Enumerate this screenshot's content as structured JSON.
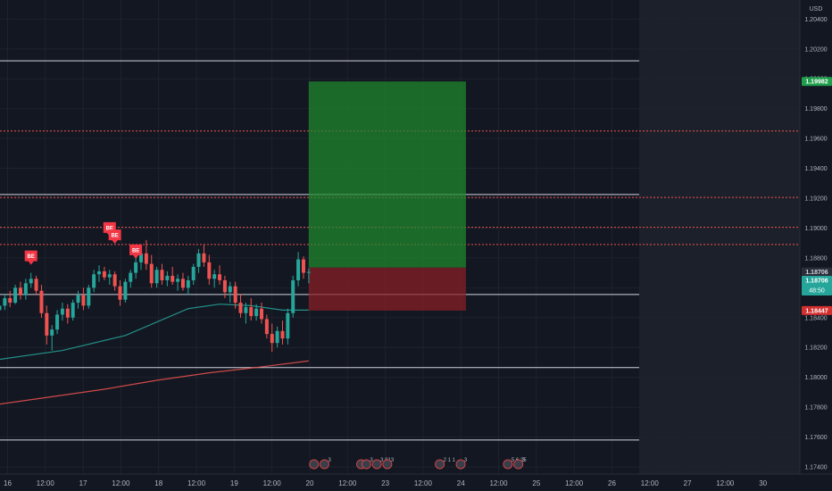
{
  "chart_data": {
    "type": "candlestick",
    "currency": "USD",
    "y_axis": {
      "min": 1.173,
      "max": 1.2045,
      "ticks": [
        "1.20400",
        "1.20200",
        "1.20000",
        "1.19800",
        "1.19600",
        "1.19400",
        "1.19200",
        "1.19000",
        "1.18800",
        "1.18600",
        "1.18400",
        "1.18200",
        "1.18000",
        "1.17800",
        "1.17600",
        "1.17400"
      ]
    },
    "x_axis": {
      "ticks": [
        "16",
        "12:00",
        "17",
        "12:00",
        "18",
        "12:00",
        "19",
        "12:00",
        "20",
        "12:00",
        "23",
        "12:00",
        "24",
        "12:00",
        "25",
        "12:00",
        "26",
        "12:00",
        "27",
        "12:00",
        "30"
      ]
    },
    "candles": [
      [
        1.1845,
        1.1852,
        1.1842,
        1.1848
      ],
      [
        1.1848,
        1.1856,
        1.1845,
        1.1853
      ],
      [
        1.1853,
        1.1858,
        1.1847,
        1.185
      ],
      [
        1.185,
        1.1862,
        1.1849,
        1.186
      ],
      [
        1.186,
        1.1864,
        1.1852,
        1.1855
      ],
      [
        1.1855,
        1.1866,
        1.1852,
        1.1863
      ],
      [
        1.1863,
        1.187,
        1.186,
        1.1866
      ],
      [
        1.1866,
        1.1868,
        1.1855,
        1.1858
      ],
      [
        1.1858,
        1.1862,
        1.184,
        1.1843
      ],
      [
        1.1843,
        1.1848,
        1.1822,
        1.1828
      ],
      [
        1.1828,
        1.1835,
        1.1818,
        1.1832
      ],
      [
        1.1832,
        1.1845,
        1.1829,
        1.1842
      ],
      [
        1.1842,
        1.185,
        1.1838,
        1.1846
      ],
      [
        1.1846,
        1.1849,
        1.1836,
        1.184
      ],
      [
        1.184,
        1.1852,
        1.1838,
        1.185
      ],
      [
        1.185,
        1.1858,
        1.1846,
        1.1855
      ],
      [
        1.1855,
        1.186,
        1.1845,
        1.1848
      ],
      [
        1.1848,
        1.1862,
        1.1846,
        1.186
      ],
      [
        1.186,
        1.1872,
        1.1857,
        1.1869
      ],
      [
        1.1869,
        1.1875,
        1.1864,
        1.1871
      ],
      [
        1.1871,
        1.1874,
        1.1865,
        1.1867
      ],
      [
        1.1867,
        1.1872,
        1.1862,
        1.1869
      ],
      [
        1.1869,
        1.1871,
        1.1858,
        1.1861
      ],
      [
        1.1861,
        1.1865,
        1.1848,
        1.1852
      ],
      [
        1.1852,
        1.1866,
        1.185,
        1.1864
      ],
      [
        1.1864,
        1.1872,
        1.186,
        1.187
      ],
      [
        1.187,
        1.188,
        1.1866,
        1.1877
      ],
      [
        1.1877,
        1.1886,
        1.1872,
        1.1883
      ],
      [
        1.1883,
        1.1892,
        1.1872,
        1.1876
      ],
      [
        1.1876,
        1.1882,
        1.186,
        1.1863
      ],
      [
        1.1863,
        1.1874,
        1.186,
        1.1872
      ],
      [
        1.1872,
        1.1876,
        1.1862,
        1.1865
      ],
      [
        1.1865,
        1.1871,
        1.1861,
        1.1868
      ],
      [
        1.1868,
        1.1874,
        1.1862,
        1.1864
      ],
      [
        1.1864,
        1.1869,
        1.1858,
        1.1866
      ],
      [
        1.1866,
        1.187,
        1.1858,
        1.186
      ],
      [
        1.186,
        1.1868,
        1.1855,
        1.1865
      ],
      [
        1.1865,
        1.1876,
        1.1862,
        1.1874
      ],
      [
        1.1874,
        1.1886,
        1.187,
        1.1883
      ],
      [
        1.1883,
        1.1889,
        1.1874,
        1.1877
      ],
      [
        1.1877,
        1.1882,
        1.1862,
        1.1866
      ],
      [
        1.1866,
        1.1872,
        1.186,
        1.1869
      ],
      [
        1.1869,
        1.1875,
        1.1862,
        1.1865
      ],
      [
        1.1865,
        1.1868,
        1.1853,
        1.1857
      ],
      [
        1.1857,
        1.1864,
        1.185,
        1.1861
      ],
      [
        1.1861,
        1.1864,
        1.1846,
        1.185
      ],
      [
        1.185,
        1.1856,
        1.184,
        1.1843
      ],
      [
        1.1843,
        1.185,
        1.1836,
        1.1847
      ],
      [
        1.1847,
        1.1853,
        1.1838,
        1.1841
      ],
      [
        1.1841,
        1.1849,
        1.1838,
        1.1846
      ],
      [
        1.1846,
        1.185,
        1.1836,
        1.1839
      ],
      [
        1.1839,
        1.1842,
        1.1826,
        1.1829
      ],
      [
        1.1829,
        1.1836,
        1.1817,
        1.1823
      ],
      [
        1.1823,
        1.1834,
        1.182,
        1.1831
      ],
      [
        1.1831,
        1.1838,
        1.1822,
        1.1826
      ],
      [
        1.1826,
        1.1846,
        1.1822,
        1.1843
      ],
      [
        1.1843,
        1.1868,
        1.184,
        1.1865
      ],
      [
        1.1865,
        1.1884,
        1.1861,
        1.1879
      ],
      [
        1.1879,
        1.1881,
        1.1866,
        1.187
      ],
      [
        1.187,
        1.1873,
        1.1863,
        1.18706
      ]
    ],
    "moving_averages": [
      {
        "color": "#26a69a",
        "points": [
          [
            0,
            1.1812
          ],
          [
            12,
            1.1818
          ],
          [
            24,
            1.1828
          ],
          [
            36,
            1.1846
          ],
          [
            42,
            1.1849
          ],
          [
            48,
            1.1848
          ],
          [
            54,
            1.1845
          ],
          [
            59,
            1.1845
          ]
        ]
      },
      {
        "color": "#ef5350",
        "points": [
          [
            0,
            1.1782
          ],
          [
            10,
            1.1787
          ],
          [
            20,
            1.1792
          ],
          [
            30,
            1.1798
          ],
          [
            40,
            1.1803
          ],
          [
            50,
            1.1807
          ],
          [
            59,
            1.1811
          ]
        ]
      }
    ],
    "horizontal_lines": [
      {
        "price": 1.2012,
        "style": "solid",
        "color": "#d1d4dc"
      },
      {
        "price": 1.19225,
        "style": "solid",
        "color": "#d1d4dc"
      },
      {
        "price": 1.18555,
        "style": "solid",
        "color": "#d1d4dc"
      },
      {
        "price": 1.18065,
        "style": "solid",
        "color": "#d1d4dc"
      },
      {
        "price": 1.1758,
        "style": "solid",
        "color": "#d1d4dc"
      },
      {
        "price": 1.1965,
        "style": "dotted",
        "color": "#ef5350"
      },
      {
        "price": 1.19205,
        "style": "dotted",
        "color": "#ef5350"
      },
      {
        "price": 1.19005,
        "style": "dotted",
        "color": "#ef5350"
      },
      {
        "price": 1.1889,
        "style": "dotted",
        "color": "#ef5350"
      }
    ],
    "position": {
      "start_bar": 59,
      "end_bar": 89,
      "entry": 1.18735,
      "target": 1.19982,
      "stop": 1.18447
    },
    "signals": [
      {
        "label": "BE",
        "bar": 6,
        "price": 1.1873
      },
      {
        "label": "BE",
        "bar": 21,
        "price": 1.1892
      },
      {
        "label": "BE",
        "bar": 22,
        "price": 1.1887
      },
      {
        "label": "BE",
        "bar": 26,
        "price": 1.1877
      }
    ],
    "price_labels": [
      {
        "text": "1.19982",
        "price": 1.19982,
        "bg": "#1f9e4c",
        "fg": "#ffffff"
      },
      {
        "text": "1.18706",
        "price": 1.18706,
        "bg": "#2a2e39",
        "fg": "#d1d4dc"
      },
      {
        "text": "1.18706",
        "price": 1.1865,
        "bg": "#26a69a",
        "fg": "#ffffff",
        "sub": "48:50"
      },
      {
        "text": "1.18447",
        "price": 1.18447,
        "bg": "#d32f2f",
        "fg": "#ffffff"
      }
    ],
    "event_markers": [
      {
        "text": "",
        "bar": 60
      },
      {
        "text": "3",
        "bar": 62
      },
      {
        "text": "",
        "bar": 69
      },
      {
        "text": "3",
        "bar": 70
      },
      {
        "text": "3 81",
        "bar": 72
      },
      {
        "text": "3",
        "bar": 74
      },
      {
        "text": "2 1 1",
        "bar": 84
      },
      {
        "text": "3",
        "bar": 88
      },
      {
        "text": "5 6 25",
        "bar": 97
      },
      {
        "text": "3",
        "bar": 99
      }
    ]
  }
}
